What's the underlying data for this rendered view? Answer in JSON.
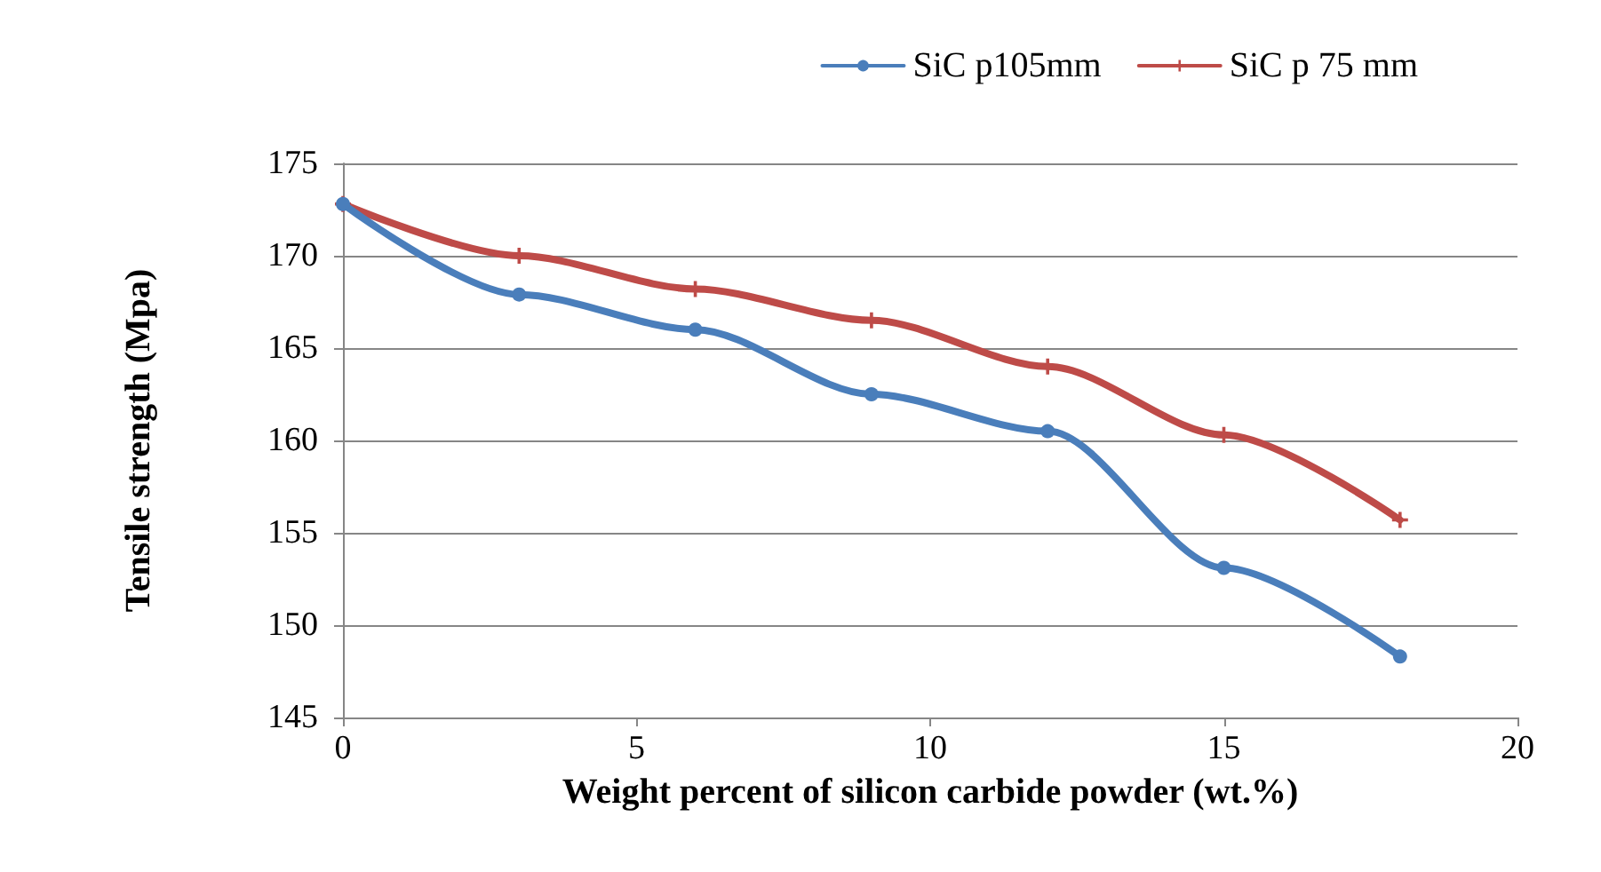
{
  "chart_data": {
    "type": "line",
    "xlabel": "Weight percent of silicon carbide powder (wt.%)",
    "ylabel": "Tensile strength (Mpa)",
    "x": [
      0,
      3,
      6,
      9,
      12,
      15,
      18
    ],
    "series": [
      {
        "name": "SiC p105mm",
        "color": "#4a7ebb",
        "marker": "circle",
        "values": [
          172.8,
          167.9,
          166,
          162.5,
          160.5,
          153.1,
          148.3
        ]
      },
      {
        "name": "SiC p 75 mm",
        "color": "#be4b48",
        "marker": "cross",
        "values": [
          172.8,
          170,
          168.2,
          166.5,
          164,
          160.3,
          155.7
        ]
      }
    ],
    "xlim": [
      0,
      20
    ],
    "xticks": [
      0,
      5,
      10,
      15,
      20
    ],
    "ylim": [
      145,
      175
    ],
    "yticks": [
      145,
      150,
      155,
      160,
      165,
      170,
      175
    ],
    "grid": "y",
    "legend": "top right",
    "line_style": "solid"
  }
}
